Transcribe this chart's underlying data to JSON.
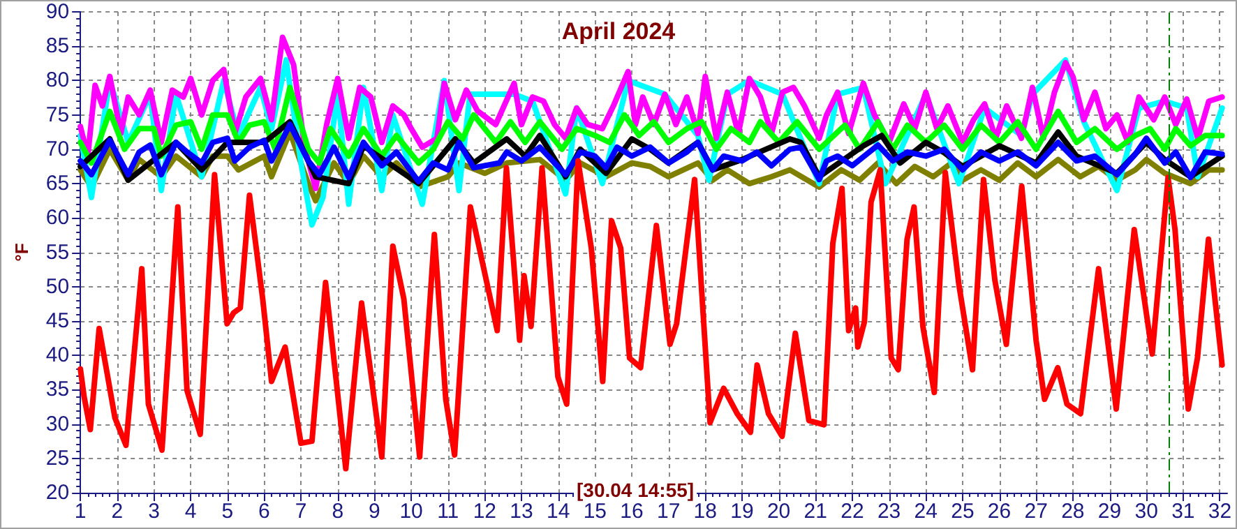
{
  "chart_data": {
    "type": "line",
    "title": "April 2024",
    "ylabel": "°F",
    "annotations": [
      "[30.04 14:55]"
    ],
    "xlim": [
      1,
      32.2
    ],
    "xticks": [
      1,
      2,
      3,
      4,
      5,
      6,
      7,
      8,
      9,
      10,
      11,
      12,
      13,
      14,
      15,
      16,
      17,
      18,
      19,
      20,
      21,
      22,
      23,
      24,
      25,
      26,
      27,
      28,
      29,
      30,
      31,
      32
    ],
    "ylim": [
      20,
      90
    ],
    "yticks": [
      20,
      25,
      30,
      35,
      40,
      45,
      50,
      55,
      60,
      65,
      70,
      75,
      80,
      85,
      90
    ],
    "grid": true,
    "marker": "none",
    "line_style": "solid",
    "ref_lines": [
      {
        "axis": "x",
        "value": 30.62,
        "color": "#008000",
        "line_style": "dashed"
      }
    ],
    "series": [
      {
        "color": "#808000",
        "x": [
          1,
          1.3,
          1.8,
          2.3,
          2.6,
          3.2,
          3.6,
          4.3,
          4.6,
          5,
          5.3,
          6,
          6.2,
          6.7,
          7.2,
          7.4,
          7.9,
          8.3,
          8.7,
          9.2,
          9.6,
          10.2,
          11,
          11.3,
          12,
          12.6,
          13.5,
          14.2,
          14.6,
          15.3,
          16,
          16.5,
          17,
          17.8,
          18.2,
          18.6,
          19.2,
          19.8,
          20.3,
          21.1,
          21.7,
          22.2,
          22.7,
          23.2,
          23.7,
          24.2,
          24.7,
          25,
          25.5,
          26,
          26.5,
          27,
          27.6,
          28.2,
          28.7,
          29.2,
          29.7,
          30,
          30.5,
          31.2,
          31.7,
          32.06
        ],
        "values": [
          67,
          64.5,
          70,
          65.5,
          68.5,
          66,
          69,
          66,
          69,
          69,
          67,
          69,
          66,
          72.5,
          65,
          62.5,
          68,
          65,
          69,
          66,
          68,
          64.5,
          66,
          68,
          66.5,
          68,
          68.5,
          65.5,
          68,
          66,
          68,
          67.5,
          66,
          68,
          65.5,
          67,
          65,
          66,
          67,
          64.5,
          67,
          65.5,
          68,
          65,
          67.5,
          66,
          68,
          65.5,
          67,
          65.5,
          68,
          66,
          68.5,
          66,
          67.5,
          65.5,
          67,
          68.5,
          66.5,
          65,
          67,
          67
        ]
      },
      {
        "color": "#00ffff",
        "x": [
          1,
          1.3,
          1.8,
          2.3,
          2.9,
          3.2,
          3.6,
          4.3,
          4.9,
          5.3,
          5.9,
          6.2,
          6.6,
          7,
          7.3,
          7.6,
          8,
          8.3,
          8.7,
          9.2,
          9.5,
          10.3,
          10.9,
          11.3,
          11.6,
          12.8,
          13.3,
          14.2,
          14.5,
          15.2,
          15.9,
          16.9,
          17.8,
          18.1,
          18.6,
          19.2,
          20.1,
          21.1,
          21.6,
          22.3,
          22.9,
          24,
          24.9,
          25.6,
          26.6,
          26.9,
          27.8,
          28.3,
          29.2,
          29.8,
          30.5,
          31.1,
          31.4,
          32.06
        ],
        "values": [
          72,
          63,
          80,
          71,
          78,
          64,
          78,
          66,
          80,
          72,
          79,
          73,
          83,
          68,
          59,
          63,
          78,
          62,
          79,
          64,
          75,
          62,
          80,
          64,
          78,
          78,
          77,
          63.5,
          76,
          65,
          80,
          78,
          72,
          65.5,
          78,
          80,
          78,
          65,
          78,
          79,
          65,
          78,
          65,
          76,
          72,
          78,
          83,
          74,
          64,
          76,
          77,
          76,
          66,
          76
        ]
      },
      {
        "color": "#ff00ff",
        "x": [
          1,
          1.2,
          1.4,
          1.6,
          1.8,
          2.1,
          2.3,
          2.6,
          2.9,
          3.2,
          3.5,
          3.8,
          4,
          4.3,
          4.6,
          4.9,
          5.2,
          5.5,
          5.9,
          6.2,
          6.5,
          6.8,
          7.1,
          7.4,
          7.7,
          8,
          8.3,
          8.6,
          8.9,
          9.2,
          9.5,
          9.8,
          10,
          10.3,
          10.7,
          10.9,
          11.2,
          11.5,
          11.8,
          12.3,
          12.8,
          13,
          13.3,
          13.6,
          13.9,
          14.2,
          14.5,
          14.8,
          15.2,
          15.5,
          15.9,
          16.1,
          16.3,
          16.6,
          16.9,
          17.2,
          17.5,
          17.8,
          18,
          18.3,
          18.6,
          18.9,
          19.2,
          19.5,
          19.8,
          20.1,
          20.4,
          20.7,
          21.1,
          21.3,
          21.6,
          21.9,
          22.3,
          22.6,
          23,
          23.4,
          23.7,
          24,
          24.3,
          24.6,
          25,
          25.3,
          25.6,
          25.9,
          26.2,
          26.6,
          26.9,
          27.2,
          27.5,
          27.8,
          28,
          28.3,
          28.6,
          28.9,
          29.2,
          29.5,
          29.8,
          30.2,
          30.5,
          30.8,
          31.1,
          31.4,
          31.7,
          32.06
        ],
        "values": [
          73.3,
          69,
          79.3,
          76.3,
          80.6,
          72.3,
          77.6,
          75,
          78.6,
          71,
          78.6,
          77.6,
          80.3,
          75,
          80,
          81.6,
          72.3,
          77.6,
          80.3,
          74.3,
          86.3,
          82.3,
          70.3,
          64.3,
          73.6,
          80.3,
          71.6,
          79,
          77.6,
          71,
          76.3,
          75,
          73,
          70.3,
          71.6,
          79.6,
          74.3,
          78.6,
          75.6,
          73.6,
          79.6,
          73.6,
          77.6,
          77,
          73.6,
          71.6,
          76,
          73.6,
          73,
          76.3,
          81.3,
          73.6,
          77.6,
          73.6,
          78,
          73.6,
          77.6,
          72.3,
          80.6,
          71.6,
          78.3,
          72.3,
          80.3,
          77.6,
          72.3,
          78.3,
          79,
          76.3,
          71.6,
          75,
          78.3,
          72.3,
          79.6,
          75,
          71,
          76.6,
          73,
          78.3,
          73,
          76.3,
          71,
          74.3,
          76.6,
          71.6,
          76.3,
          71.6,
          79,
          71.6,
          78.3,
          82.6,
          80.6,
          74.3,
          78.3,
          73,
          75,
          71,
          77.6,
          74.3,
          77.6,
          73.6,
          77.3,
          71.6,
          77,
          77.6
        ]
      },
      {
        "color": "#00ff00",
        "x": [
          1,
          1.3,
          1.8,
          2.2,
          2.6,
          3,
          3.2,
          3.6,
          4,
          4.3,
          4.6,
          5,
          5.3,
          5.6,
          6,
          6.3,
          6.7,
          7.2,
          7.5,
          7.8,
          8.3,
          8.7,
          9.2,
          9.6,
          10.2,
          10.6,
          11,
          11.4,
          11.7,
          12.3,
          12.7,
          13.1,
          13.5,
          14.1,
          14.5,
          15,
          15.4,
          15.8,
          16.2,
          16.6,
          17,
          17.5,
          17.9,
          18.3,
          18.7,
          19.2,
          19.5,
          20,
          20.5,
          21.1,
          21.5,
          21.8,
          22.2,
          22.7,
          23.1,
          23.5,
          24,
          24.5,
          25,
          25.5,
          26,
          26.5,
          27,
          27.6,
          28.1,
          28.6,
          29.2,
          29.7,
          30.1,
          30.5,
          30.8,
          31.2,
          31.6,
          32.06
        ],
        "values": [
          71,
          68,
          75.5,
          70,
          73,
          73,
          69,
          73.5,
          74,
          70,
          75,
          75,
          71,
          73.5,
          74,
          70,
          79,
          70,
          68,
          73,
          69,
          73,
          69,
          72,
          68,
          70,
          74,
          71.5,
          75,
          71,
          74,
          71,
          74,
          70,
          73,
          72,
          71,
          75,
          72,
          74,
          71,
          73,
          74,
          70,
          73,
          71,
          74,
          71,
          74,
          70,
          72,
          73.5,
          70,
          74,
          70,
          73.5,
          71,
          73.5,
          70,
          73.5,
          71,
          74,
          70,
          75.5,
          71,
          73,
          70,
          72,
          73,
          70,
          73,
          70.5,
          72,
          72
        ]
      },
      {
        "color": "#000000",
        "x": [
          1,
          1.8,
          2.3,
          3.6,
          4.3,
          5,
          6,
          6.7,
          7.4,
          8.3,
          8.7,
          10.2,
          11.2,
          11.7,
          12.6,
          13.1,
          13.5,
          14.2,
          14.6,
          15.3,
          16,
          16.5,
          17,
          17.8,
          18.2,
          19,
          20.3,
          20.6,
          21.1,
          22.3,
          22.8,
          23.3,
          24,
          24.5,
          25,
          26,
          27,
          27.6,
          28.1,
          29.2,
          30,
          30.5,
          31.2,
          32.06
        ],
        "values": [
          67.5,
          71.5,
          65.5,
          71,
          67,
          71,
          71,
          74,
          66,
          65,
          70.5,
          65,
          71.5,
          68,
          71.5,
          69,
          72,
          66,
          70,
          66.5,
          71.5,
          70,
          68,
          71,
          67,
          68.5,
          71.5,
          71,
          66,
          70.5,
          72,
          68,
          71,
          69.5,
          67.5,
          70.5,
          68,
          72.5,
          69,
          66.5,
          71,
          68.5,
          66,
          69
        ]
      },
      {
        "color": "#0000ff",
        "x": [
          1,
          1.3,
          1.8,
          2.3,
          2.6,
          2.9,
          3.2,
          3.6,
          3.9,
          4.3,
          4.6,
          5,
          5.2,
          5.6,
          6,
          6.2,
          6.7,
          7.2,
          7.5,
          7.9,
          8.3,
          8.7,
          9.2,
          9.6,
          10.2,
          10.6,
          11,
          11.3,
          11.7,
          12.4,
          12.6,
          13,
          13.5,
          14.2,
          14.6,
          15,
          15.3,
          15.6,
          16,
          16.5,
          17,
          17.5,
          17.8,
          18.2,
          18.5,
          19,
          19.4,
          19.8,
          20.3,
          20.6,
          21.1,
          21.3,
          21.6,
          22,
          22.7,
          23.1,
          23.5,
          24,
          24.5,
          25,
          25.5,
          26,
          26.5,
          27,
          27.6,
          28.1,
          28.6,
          29.2,
          29.7,
          30,
          30.5,
          30.8,
          31.2,
          31.6,
          32.06
        ],
        "values": [
          68.3,
          66.3,
          71.3,
          66.3,
          69.6,
          70.6,
          66.3,
          71,
          69.6,
          68,
          71,
          71.6,
          68.3,
          70.3,
          71.3,
          68.3,
          73.6,
          68.3,
          66.3,
          70.3,
          65.9,
          71,
          67.6,
          69.6,
          65.3,
          68,
          67,
          71,
          67.3,
          68,
          69.6,
          68.3,
          70.3,
          66.3,
          69.6,
          69,
          67.3,
          70.3,
          69,
          70.3,
          68,
          69.6,
          71,
          67,
          69,
          68.3,
          69.6,
          67.6,
          70,
          70.3,
          65.6,
          68.3,
          69,
          67.6,
          70.6,
          68.3,
          69.6,
          69,
          70,
          67,
          69.6,
          68.3,
          69.6,
          67.6,
          71,
          68.3,
          69,
          66.3,
          69.3,
          71.6,
          68,
          69.6,
          65.9,
          69.6,
          69.3
        ]
      },
      {
        "color": "#ff0000",
        "x": [
          1,
          1.1,
          1.27,
          1.51,
          1.7,
          1.94,
          2.24,
          2.67,
          2.85,
          3.22,
          3.65,
          3.9,
          4.26,
          4.65,
          4.99,
          5.17,
          5.35,
          5.6,
          5.96,
          6.2,
          6.57,
          7,
          7.3,
          7.67,
          8.22,
          8.65,
          9.2,
          9.5,
          9.8,
          10.23,
          10.63,
          10.94,
          11.18,
          11.61,
          12.34,
          12.59,
          12.95,
          13.07,
          13.26,
          13.56,
          13.99,
          14.23,
          14.54,
          14.9,
          15.21,
          15.45,
          15.7,
          15.94,
          16.24,
          16.67,
          17.04,
          17.22,
          17.71,
          18.13,
          18.5,
          18.87,
          19.23,
          19.41,
          19.72,
          20.09,
          20.45,
          20.82,
          21.23,
          21.47,
          21.72,
          21.9,
          22.09,
          22.15,
          22.33,
          22.51,
          22.76,
          23.06,
          23.25,
          23.49,
          23.68,
          23.92,
          24.23,
          24.53,
          24.9,
          25.27,
          25.57,
          25.88,
          26.19,
          26.61,
          27,
          27.23,
          27.59,
          27.84,
          28.21,
          28.7,
          29.18,
          29.67,
          30.16,
          30.59,
          30.78,
          31.14,
          31.39,
          31.69,
          32.06
        ],
        "values": [
          38,
          34,
          29.2,
          43.9,
          38.2,
          30.9,
          26.9,
          52.6,
          32.9,
          26.2,
          61.6,
          34.9,
          28.5,
          66.3,
          44.6,
          46.2,
          46.9,
          63.3,
          48.2,
          36.2,
          41.2,
          27.2,
          27.5,
          50.6,
          23.5,
          47.6,
          25.2,
          55.9,
          48.2,
          25.2,
          57.6,
          33.6,
          25.5,
          61.6,
          43.6,
          67.3,
          42.2,
          51.6,
          44.2,
          67.3,
          36.9,
          32.9,
          68.3,
          55.6,
          36.2,
          59.6,
          55.6,
          39.6,
          38.2,
          58.9,
          41.6,
          44.6,
          65.6,
          30.2,
          35.2,
          31.5,
          28.8,
          38.6,
          31.5,
          28.2,
          43.2,
          30.5,
          29.9,
          56.3,
          64.3,
          43.6,
          46.9,
          41.2,
          44.9,
          62.3,
          67,
          39.6,
          37.9,
          56.9,
          61.6,
          44.2,
          34.6,
          66.6,
          50.3,
          37.9,
          65.6,
          50.9,
          41.6,
          64.6,
          42.2,
          33.6,
          38.2,
          32.9,
          31.5,
          52.6,
          32.2,
          58.3,
          40.2,
          65.9,
          58.3,
          32.2,
          39.6,
          56.9,
          38.6
        ]
      }
    ]
  }
}
